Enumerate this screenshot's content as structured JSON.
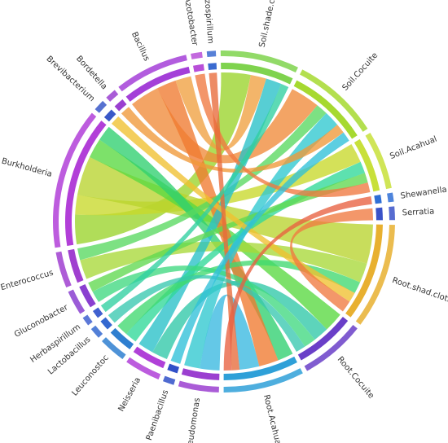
{
  "chart_data": {
    "type": "chord",
    "segments": [
      {
        "name": "Soil.shade.cloth",
        "color": "#7fd34e"
      },
      {
        "name": "Soil.Cocuite",
        "color": "#a6d930"
      },
      {
        "name": "Soil.Acahual",
        "color": "#c8e03a"
      },
      {
        "name": "Shewanella",
        "color": "#2f6fd6"
      },
      {
        "name": "Serratia",
        "color": "#3a52c8"
      },
      {
        "name": "Root.shad.cloth",
        "color": "#e8b030"
      },
      {
        "name": "Root.Cocuite",
        "color": "#6a3fc8"
      },
      {
        "name": "Root.Acahual",
        "color": "#2fa0d8"
      },
      {
        "name": "Pseudomonas",
        "color": "#9b3fd0"
      },
      {
        "name": "Paenibacillus",
        "color": "#3050c8"
      },
      {
        "name": "Neisseria",
        "color": "#b040d8"
      },
      {
        "name": "Leuconostoc",
        "color": "#2f7fd0"
      },
      {
        "name": "Lactobacillus",
        "color": "#3468d0"
      },
      {
        "name": "Herbaspirillum",
        "color": "#4060d0"
      },
      {
        "name": "Gluconobacter",
        "color": "#8a3fd0"
      },
      {
        "name": "Enterococcus",
        "color": "#a040d0"
      },
      {
        "name": "Burkholderia",
        "color": "#b23fd8"
      },
      {
        "name": "Brevibacterium",
        "color": "#3a58c8"
      },
      {
        "name": "Bordetella",
        "color": "#9a3fd0"
      },
      {
        "name": "Bacillus",
        "color": "#a43fd8"
      },
      {
        "name": "Azotobacter",
        "color": "#b84fd8"
      },
      {
        "name": "Azospirillum",
        "color": "#3a6ad0"
      }
    ],
    "links": [
      {
        "source": "Burkholderia",
        "target": "Soil.shade.cloth",
        "value": 15,
        "color": "#9ad42a"
      },
      {
        "source": "Burkholderia",
        "target": "Soil.Acahual",
        "value": 10,
        "color": "#c8d82a"
      },
      {
        "source": "Burkholderia",
        "target": "Root.shad.cloth",
        "value": 20,
        "color": "#b8d42e"
      },
      {
        "source": "Burkholderia",
        "target": "Root.Cocuite",
        "value": 10,
        "color": "#58d840"
      },
      {
        "source": "Burkholderia",
        "target": "Root.Acahual",
        "value": 8,
        "color": "#30d070"
      },
      {
        "source": "Bacillus",
        "target": "Soil.Cocuite",
        "value": 15,
        "color": "#f08a3a"
      },
      {
        "source": "Bacillus",
        "target": "Root.Acahual",
        "value": 10,
        "color": "#f07a30"
      },
      {
        "source": "Bacillus",
        "target": "Soil.shade.cloth",
        "value": 8,
        "color": "#f0a040"
      },
      {
        "source": "Enterococcus",
        "target": "Root.shad.cloth",
        "value": 10,
        "color": "#a8d838"
      },
      {
        "source": "Enterococcus",
        "target": "Soil.Cocuite",
        "value": 6,
        "color": "#58d860"
      },
      {
        "source": "Neisseria",
        "target": "Root.Cocuite",
        "value": 8,
        "color": "#30c8a8"
      },
      {
        "source": "Neisseria",
        "target": "Soil.shade.cloth",
        "value": 8,
        "color": "#28c0c8"
      },
      {
        "source": "Pseudomonas",
        "target": "Root.Acahual",
        "value": 10,
        "color": "#38b8e0"
      },
      {
        "source": "Pseudomonas",
        "target": "Soil.Cocuite",
        "value": 8,
        "color": "#30c8d0"
      },
      {
        "source": "Leuconostoc",
        "target": "Soil.Acahual",
        "value": 6,
        "color": "#30d898"
      },
      {
        "source": "Leuconostoc",
        "target": "Root.shad.cloth",
        "value": 6,
        "color": "#40d870"
      },
      {
        "source": "Gluconobacter",
        "target": "Root.Cocuite",
        "value": 6,
        "color": "#40d880"
      },
      {
        "source": "Gluconobacter",
        "target": "Soil.Acahual",
        "value": 5,
        "color": "#60d850"
      },
      {
        "source": "Bordetella",
        "target": "Soil.Cocuite",
        "value": 5,
        "color": "#f09838"
      },
      {
        "source": "Brevibacterium",
        "target": "Root.shad.cloth",
        "value": 5,
        "color": "#f0c030"
      },
      {
        "source": "Azotobacter",
        "target": "Soil.Acahual",
        "value": 5,
        "color": "#f07840"
      },
      {
        "source": "Azospirillum",
        "target": "Root.Acahual",
        "value": 4,
        "color": "#e86a3a"
      },
      {
        "source": "Herbaspirillum",
        "target": "Soil.shade.cloth",
        "value": 4,
        "color": "#30d0a0"
      },
      {
        "source": "Lactobacillus",
        "target": "Root.Cocuite",
        "value": 5,
        "color": "#38c8b0"
      },
      {
        "source": "Paenibacillus",
        "target": "Soil.Cocuite",
        "value": 5,
        "color": "#30c0d8"
      },
      {
        "source": "Serratia",
        "target": "Root.shad.cloth",
        "value": 6,
        "color": "#f07a40"
      },
      {
        "source": "Shewanella",
        "target": "Root.Acahual",
        "value": 4,
        "color": "#e86040"
      }
    ]
  }
}
